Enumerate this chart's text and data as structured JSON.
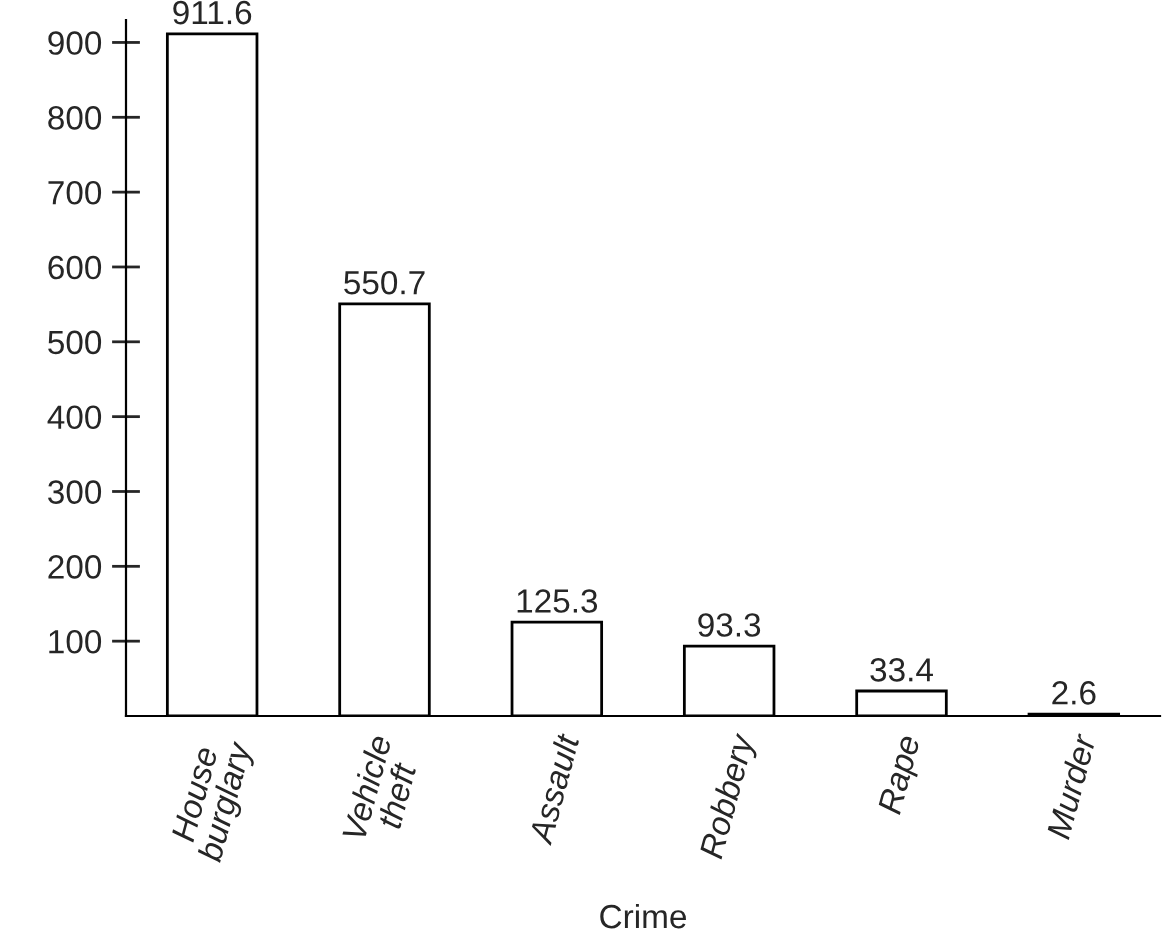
{
  "chart_data": {
    "type": "bar",
    "xlabel": "Crime",
    "categories": [
      "House\nburglary",
      "Vehicle\ntheft",
      "Assault",
      "Robbery",
      "Rape",
      "Murder"
    ],
    "values": [
      911.6,
      550.7,
      125.3,
      93.3,
      33.4,
      2.6
    ],
    "color": "#ffffff",
    "ylim": [
      0,
      930
    ],
    "yticks": [
      100,
      200,
      300,
      400,
      500,
      600,
      700,
      800,
      900
    ],
    "grid": false,
    "data_labels": true
  }
}
